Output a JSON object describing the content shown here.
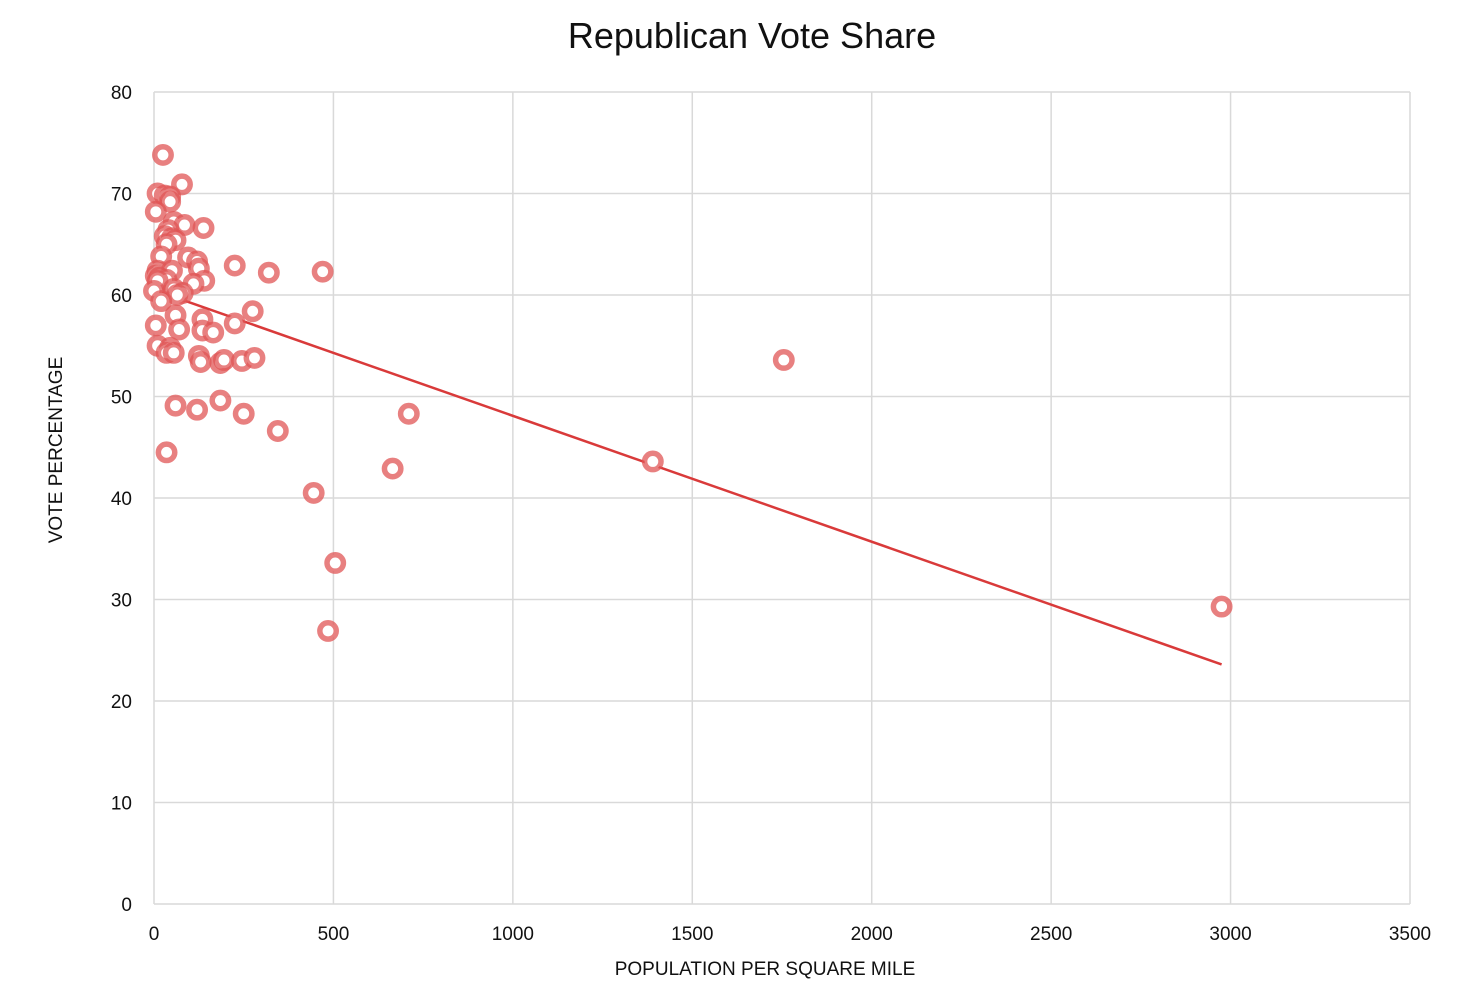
{
  "chart_data": {
    "type": "scatter",
    "title": "Republican Vote Share",
    "xlabel": "POPULATION PER SQUARE MILE",
    "ylabel": "VOTE PERCENTAGE",
    "xlim": [
      0,
      3500
    ],
    "ylim": [
      0,
      80
    ],
    "x_ticks": [
      "0",
      "500",
      "1000",
      "1500",
      "2000",
      "2500",
      "3000",
      "3500"
    ],
    "y_ticks": [
      "0",
      "10",
      "20",
      "30",
      "40",
      "50",
      "60",
      "70",
      "80"
    ],
    "grid": true,
    "legend": "none",
    "colors": {
      "marker": "#e05555",
      "trendline": "#d93a3a",
      "grid": "#d9d9d9"
    },
    "series": [
      {
        "points": [
          [
            25,
            73.8
          ],
          [
            78,
            70.9
          ],
          [
            10,
            70
          ],
          [
            30,
            69.8
          ],
          [
            45,
            69.7
          ],
          [
            45,
            69.2
          ],
          [
            5,
            68.2
          ],
          [
            55,
            67.2
          ],
          [
            85,
            66.9
          ],
          [
            138,
            66.6
          ],
          [
            40,
            66.4
          ],
          [
            30,
            65.8
          ],
          [
            50,
            65.6
          ],
          [
            60,
            65.4
          ],
          [
            35,
            65
          ],
          [
            20,
            63.8
          ],
          [
            95,
            63.7
          ],
          [
            120,
            63.3
          ],
          [
            225,
            62.9
          ],
          [
            10,
            62.4
          ],
          [
            50,
            62.4
          ],
          [
            125,
            62.6
          ],
          [
            320,
            62.2
          ],
          [
            470,
            62.3
          ],
          [
            5,
            61.9
          ],
          [
            15,
            61.7
          ],
          [
            35,
            61.5
          ],
          [
            10,
            61.4
          ],
          [
            140,
            61.4
          ],
          [
            110,
            61.1
          ],
          [
            0,
            60.4
          ],
          [
            55,
            60.6
          ],
          [
            80,
            60.2
          ],
          [
            65,
            60
          ],
          [
            20,
            59.4
          ],
          [
            275,
            58.4
          ],
          [
            60,
            58
          ],
          [
            135,
            57.6
          ],
          [
            225,
            57.2
          ],
          [
            5,
            57
          ],
          [
            70,
            56.6
          ],
          [
            135,
            56.5
          ],
          [
            165,
            56.3
          ],
          [
            10,
            55
          ],
          [
            45,
            54.8
          ],
          [
            35,
            54.3
          ],
          [
            55,
            54.3
          ],
          [
            125,
            54
          ],
          [
            130,
            53.4
          ],
          [
            185,
            53.3
          ],
          [
            195,
            53.6
          ],
          [
            245,
            53.5
          ],
          [
            280,
            53.8
          ],
          [
            1755,
            53.6
          ],
          [
            60,
            49.1
          ],
          [
            120,
            48.7
          ],
          [
            185,
            49.6
          ],
          [
            250,
            48.3
          ],
          [
            710,
            48.3
          ],
          [
            345,
            46.6
          ],
          [
            35,
            44.5
          ],
          [
            1390,
            43.6
          ],
          [
            665,
            42.9
          ],
          [
            445,
            40.5
          ],
          [
            505,
            33.6
          ],
          [
            485,
            26.9
          ],
          [
            2975,
            29.3
          ]
        ]
      }
    ],
    "trendline": {
      "type": "linear",
      "x": [
        0,
        2975
      ],
      "y": [
        60.5,
        23.6
      ]
    }
  }
}
